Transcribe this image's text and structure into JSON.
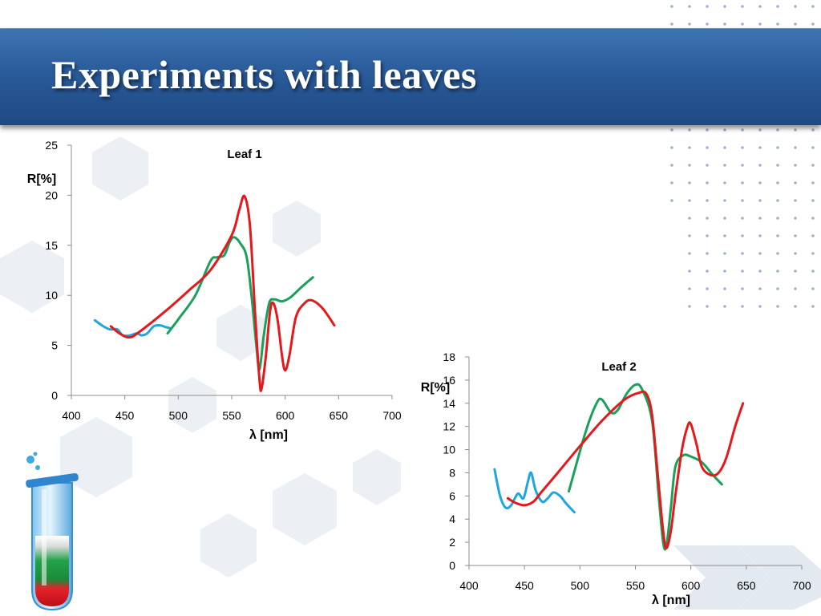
{
  "slide": {
    "title": "Experiments with leaves"
  },
  "colors": {
    "series_blue": "#1ea6dd",
    "series_green": "#1aa05a",
    "series_red": "#e5191b",
    "title_bar": "#2a5b9a"
  },
  "chart_data": [
    {
      "type": "line",
      "title": "Leaf 1",
      "xlabel": "λ [nm]",
      "ylabel": "R[%]",
      "xlim": [
        400,
        700
      ],
      "ylim": [
        0,
        25
      ],
      "x_ticks": [
        400,
        450,
        500,
        550,
        600,
        650,
        700
      ],
      "y_ticks": [
        0,
        5,
        10,
        15,
        20,
        25
      ],
      "grid": false,
      "series": [
        {
          "color": "series_blue",
          "points": [
            [
              422,
              7.5
            ],
            [
              430,
              6.9
            ],
            [
              436,
              6.6
            ],
            [
              443,
              6.6
            ],
            [
              448,
              6.0
            ],
            [
              455,
              6.0
            ],
            [
              461,
              6.2
            ],
            [
              466,
              6.0
            ],
            [
              471,
              6.2
            ],
            [
              477,
              6.9
            ],
            [
              483,
              7.0
            ],
            [
              489,
              6.8
            ],
            [
              493,
              6.7
            ]
          ]
        },
        {
          "color": "series_green",
          "points": [
            [
              490,
              6.2
            ],
            [
              500,
              7.6
            ],
            [
              516,
              10.0
            ],
            [
              530,
              13.4
            ],
            [
              536,
              13.8
            ],
            [
              543,
              14.0
            ],
            [
              548,
              15.3
            ],
            [
              552,
              15.8
            ],
            [
              558,
              15.2
            ],
            [
              564,
              13.8
            ],
            [
              569,
              9.5
            ],
            [
              573,
              5.0
            ],
            [
              576,
              2.6
            ],
            [
              580,
              6.0
            ],
            [
              585,
              9.2
            ],
            [
              590,
              9.6
            ],
            [
              597,
              9.4
            ],
            [
              605,
              9.8
            ],
            [
              615,
              10.8
            ],
            [
              626,
              11.8
            ]
          ]
        },
        {
          "color": "series_red",
          "points": [
            [
              437,
              6.9
            ],
            [
              445,
              6.2
            ],
            [
              454,
              5.8
            ],
            [
              463,
              6.3
            ],
            [
              490,
              8.6
            ],
            [
              510,
              10.5
            ],
            [
              530,
              12.5
            ],
            [
              550,
              16.0
            ],
            [
              557,
              18.5
            ],
            [
              562,
              19.9
            ],
            [
              567,
              17.0
            ],
            [
              572,
              8.0
            ],
            [
              576,
              1.5
            ],
            [
              578,
              0.7
            ],
            [
              582,
              4.0
            ],
            [
              586,
              8.5
            ],
            [
              589,
              9.2
            ],
            [
              593,
              7.5
            ],
            [
              597,
              4.0
            ],
            [
              600,
              2.5
            ],
            [
              604,
              4.0
            ],
            [
              610,
              7.8
            ],
            [
              618,
              9.2
            ],
            [
              625,
              9.5
            ],
            [
              635,
              8.7
            ],
            [
              646,
              7.0
            ]
          ]
        }
      ]
    },
    {
      "type": "line",
      "title": "Leaf 2",
      "xlabel": "λ [nm]",
      "ylabel": "R[%]",
      "xlim": [
        400,
        700
      ],
      "ylim": [
        0,
        18
      ],
      "x_ticks": [
        400,
        450,
        500,
        550,
        600,
        650,
        700
      ],
      "y_ticks": [
        0,
        2,
        4,
        6,
        8,
        10,
        12,
        14,
        16,
        18
      ],
      "grid": false,
      "series": [
        {
          "color": "series_blue",
          "points": [
            [
              423,
              8.3
            ],
            [
              428,
              6.0
            ],
            [
              433,
              5.0
            ],
            [
              438,
              5.2
            ],
            [
              444,
              6.2
            ],
            [
              449,
              5.8
            ],
            [
              453,
              7.2
            ],
            [
              456,
              8.0
            ],
            [
              460,
              6.5
            ],
            [
              466,
              5.5
            ],
            [
              471,
              5.8
            ],
            [
              476,
              6.3
            ],
            [
              482,
              6.0
            ],
            [
              488,
              5.3
            ],
            [
              495,
              4.6
            ]
          ]
        },
        {
          "color": "series_green",
          "points": [
            [
              490,
              6.4
            ],
            [
              505,
              11.5
            ],
            [
              515,
              14.0
            ],
            [
              520,
              14.3
            ],
            [
              528,
              13.2
            ],
            [
              534,
              13.4
            ],
            [
              542,
              14.8
            ],
            [
              550,
              15.6
            ],
            [
              556,
              15.2
            ],
            [
              565,
              12.5
            ],
            [
              571,
              6.0
            ],
            [
              575,
              2.0
            ],
            [
              578,
              1.7
            ],
            [
              582,
              5.0
            ],
            [
              586,
              8.5
            ],
            [
              593,
              9.5
            ],
            [
              600,
              9.4
            ],
            [
              610,
              8.9
            ],
            [
              620,
              7.8
            ],
            [
              628,
              7.0
            ]
          ]
        },
        {
          "color": "series_red",
          "points": [
            [
              435,
              5.8
            ],
            [
              442,
              5.4
            ],
            [
              450,
              5.2
            ],
            [
              458,
              5.5
            ],
            [
              465,
              6.3
            ],
            [
              480,
              8.0
            ],
            [
              500,
              10.3
            ],
            [
              520,
              12.5
            ],
            [
              540,
              14.3
            ],
            [
              553,
              14.9
            ],
            [
              560,
              14.8
            ],
            [
              565,
              13.0
            ],
            [
              570,
              8.0
            ],
            [
              575,
              3.0
            ],
            [
              578,
              1.5
            ],
            [
              582,
              3.0
            ],
            [
              586,
              6.0
            ],
            [
              592,
              10.0
            ],
            [
              597,
              12.0
            ],
            [
              600,
              12.2
            ],
            [
              605,
              10.5
            ],
            [
              610,
              8.5
            ],
            [
              618,
              7.8
            ],
            [
              625,
              8.0
            ],
            [
              632,
              9.3
            ],
            [
              640,
              12.0
            ],
            [
              647,
              14.0
            ]
          ]
        }
      ]
    }
  ]
}
